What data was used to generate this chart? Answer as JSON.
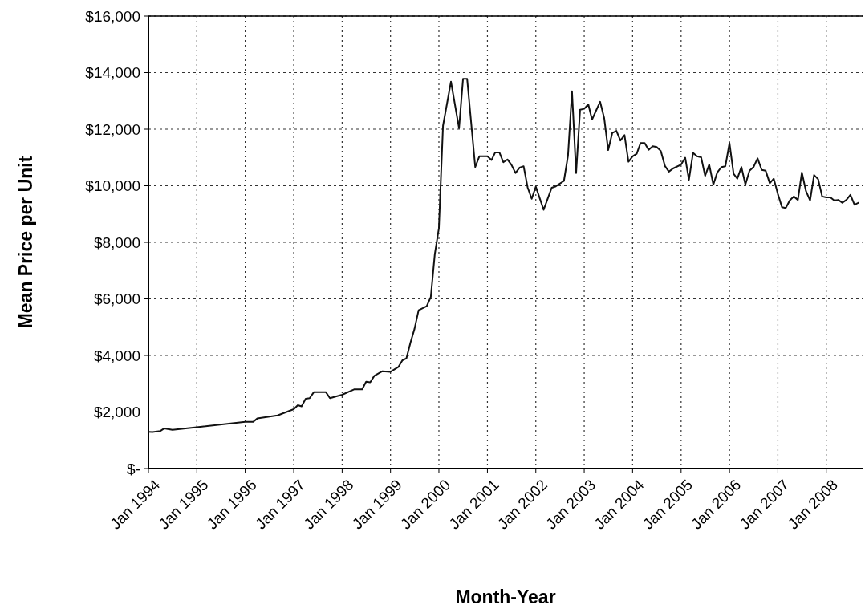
{
  "chart_data": {
    "type": "line",
    "xlabel": "Month-Year",
    "ylabel": "Mean Price per Unit",
    "x": [
      "1994-01",
      "1994-02",
      "1994-04",
      "1994-05",
      "1994-07",
      "1995-01",
      "1996-01",
      "1996-03",
      "1996-04",
      "1996-09",
      "1997-01",
      "1997-02",
      "1997-03",
      "1997-04",
      "1997-05",
      "1997-06",
      "1997-09",
      "1997-10",
      "1998-01",
      "1998-04",
      "1998-06",
      "1998-07",
      "1998-08",
      "1998-09",
      "1998-11",
      "1999-01",
      "1999-03",
      "1999-04",
      "1999-05",
      "1999-06",
      "1999-07",
      "1999-08",
      "1999-10",
      "1999-11",
      "1999-12",
      "2000-01",
      "2000-02",
      "2000-04",
      "2000-06",
      "2000-07",
      "2000-08",
      "2000-10",
      "2000-11",
      "2001-01",
      "2001-02",
      "2001-03",
      "2001-04",
      "2001-05",
      "2001-06",
      "2001-07",
      "2001-08",
      "2001-09",
      "2001-10",
      "2001-11",
      "2001-12",
      "2002-01",
      "2002-03",
      "2002-05",
      "2002-06",
      "2002-08",
      "2002-09",
      "2002-10",
      "2002-11",
      "2002-12",
      "2003-01",
      "2003-02",
      "2003-03",
      "2003-05",
      "2003-06",
      "2003-07",
      "2003-08",
      "2003-09",
      "2003-10",
      "2003-11",
      "2003-12",
      "2004-01",
      "2004-02",
      "2004-03",
      "2004-04",
      "2004-05",
      "2004-06",
      "2004-07",
      "2004-08",
      "2004-09",
      "2004-10",
      "2004-11",
      "2005-01",
      "2005-02",
      "2005-03",
      "2005-04",
      "2005-05",
      "2005-06",
      "2005-07",
      "2005-08",
      "2005-09",
      "2005-10",
      "2005-11",
      "2005-12",
      "2006-01",
      "2006-02",
      "2006-03",
      "2006-04",
      "2006-05",
      "2006-06",
      "2006-07",
      "2006-08",
      "2006-09",
      "2006-10",
      "2006-11",
      "2006-12",
      "2007-01",
      "2007-02",
      "2007-03",
      "2007-04",
      "2007-05",
      "2007-06",
      "2007-07",
      "2007-08",
      "2007-09",
      "2007-10",
      "2007-11",
      "2007-12",
      "2008-01",
      "2008-02",
      "2008-03",
      "2008-04",
      "2008-05",
      "2008-06",
      "2008-07",
      "2008-08",
      "2008-09"
    ],
    "series": [
      {
        "color": "#111111",
        "values": [
          1300,
          1290,
          1330,
          1420,
          1370,
          1460,
          1650,
          1650,
          1770,
          1880,
          2100,
          2240,
          2200,
          2470,
          2490,
          2700,
          2700,
          2490,
          2610,
          2800,
          2800,
          3070,
          3050,
          3280,
          3440,
          3420,
          3590,
          3830,
          3900,
          4460,
          4940,
          5600,
          5740,
          6070,
          7580,
          8500,
          12120,
          13680,
          12030,
          13780,
          13780,
          10660,
          11040,
          11040,
          10910,
          11180,
          11180,
          10830,
          10930,
          10740,
          10450,
          10640,
          10690,
          9930,
          9540,
          9970,
          9150,
          9930,
          9980,
          10170,
          11070,
          13340,
          10450,
          12690,
          12720,
          12880,
          12340,
          12970,
          12390,
          11260,
          11870,
          11940,
          11600,
          11790,
          10850,
          11040,
          11130,
          11510,
          11510,
          11270,
          11400,
          11370,
          11230,
          10700,
          10500,
          10610,
          10750,
          10990,
          10210,
          11160,
          11040,
          11010,
          10350,
          10750,
          10040,
          10470,
          10660,
          10690,
          11510,
          10420,
          10250,
          10660,
          10040,
          10530,
          10660,
          10970,
          10560,
          10530,
          10090,
          10250,
          9710,
          9240,
          9210,
          9480,
          9620,
          9500,
          10470,
          9810,
          9480,
          10380,
          10230,
          9620,
          9590,
          9590,
          9480,
          9500,
          9400,
          9500,
          9680,
          9330,
          9400
        ]
      }
    ],
    "xlim": [
      "1994-01",
      "2008-10"
    ],
    "xticks": [
      {
        "value": "1994-01",
        "label": "Jan 1994"
      },
      {
        "value": "1995-01",
        "label": "Jan 1995"
      },
      {
        "value": "1996-01",
        "label": "Jan 1996"
      },
      {
        "value": "1997-01",
        "label": "Jan 1997"
      },
      {
        "value": "1998-01",
        "label": "Jan 1998"
      },
      {
        "value": "1999-01",
        "label": "Jan 1999"
      },
      {
        "value": "2000-01",
        "label": "Jan 2000"
      },
      {
        "value": "2001-01",
        "label": "Jan 2001"
      },
      {
        "value": "2002-01",
        "label": "Jan 2002"
      },
      {
        "value": "2003-01",
        "label": "Jan 2003"
      },
      {
        "value": "2004-01",
        "label": "Jan 2004"
      },
      {
        "value": "2005-01",
        "label": "Jan 2005"
      },
      {
        "value": "2006-01",
        "label": "Jan 2006"
      },
      {
        "value": "2007-01",
        "label": "Jan 2007"
      },
      {
        "value": "2008-01",
        "label": "Jan 2008"
      }
    ],
    "ylim": [
      0,
      16000
    ],
    "yticks": [
      {
        "value": 0,
        "label": "$-"
      },
      {
        "value": 2000,
        "label": "$2,000"
      },
      {
        "value": 4000,
        "label": "$4,000"
      },
      {
        "value": 6000,
        "label": "$6,000"
      },
      {
        "value": 8000,
        "label": "$8,000"
      },
      {
        "value": 10000,
        "label": "$10,000"
      },
      {
        "value": 12000,
        "label": "$12,000"
      },
      {
        "value": 14000,
        "label": "$14,000"
      },
      {
        "value": 16000,
        "label": "$16,000"
      }
    ],
    "grid": true,
    "marker": "none",
    "line_style": "solid"
  }
}
